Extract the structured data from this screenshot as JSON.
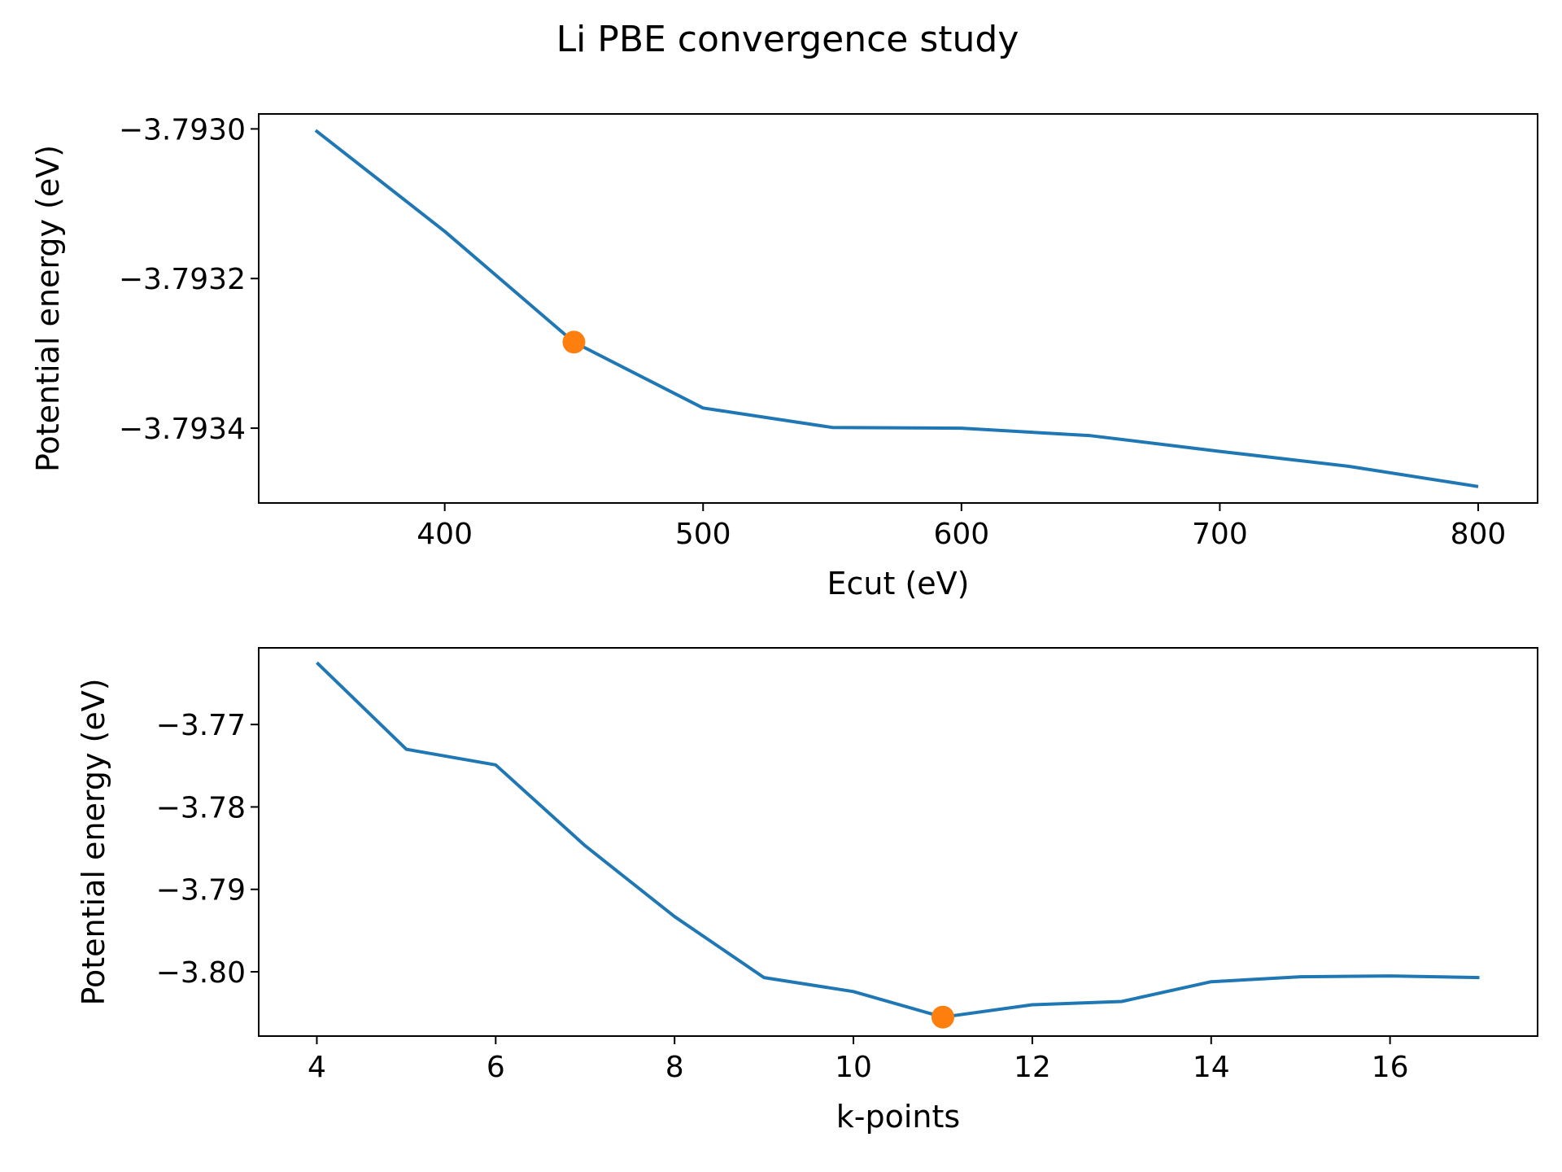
{
  "figure": {
    "title": "Li PBE convergence study"
  },
  "chart_data": [
    {
      "type": "line",
      "xlabel": "Ecut (eV)",
      "ylabel": "Potential energy (eV)",
      "xlim": [
        328,
        823
      ],
      "ylim": [
        -3.7935,
        -3.79298
      ],
      "xticks": [
        400,
        500,
        600,
        700,
        800
      ],
      "yticks": [
        -3.793,
        -3.7932,
        -3.7934
      ],
      "ytick_labels": [
        "−3.7930",
        "−3.7932",
        "−3.7934"
      ],
      "grid": false,
      "series": [
        {
          "values_x": [
            350,
            400,
            450,
            500,
            550,
            600,
            650,
            700,
            750,
            800
          ],
          "values_y": [
            -3.793002,
            -3.793137,
            -3.793285,
            -3.793373,
            -3.793399,
            -3.7934,
            -3.79341,
            -3.793431,
            -3.793451,
            -3.793478
          ],
          "color": "#1f77b4"
        }
      ],
      "highlight": {
        "x": 450,
        "y": -3.793285,
        "color": "#ff7f0e"
      }
    },
    {
      "type": "line",
      "xlabel": "k-points",
      "ylabel": "Potential energy (eV)",
      "xlim": [
        3.35,
        17.65
      ],
      "ylim": [
        -3.8078,
        -3.7607
      ],
      "xticks": [
        4,
        6,
        8,
        10,
        12,
        14,
        16
      ],
      "yticks": [
        -3.77,
        -3.78,
        -3.79,
        -3.8
      ],
      "ytick_labels": [
        "−3.77",
        "−3.78",
        "−3.79",
        "−3.80"
      ],
      "grid": false,
      "series": [
        {
          "values_x": [
            4,
            5,
            6,
            7,
            8,
            9,
            10,
            11,
            12,
            13,
            14,
            15,
            16,
            17
          ],
          "values_y": [
            -3.7625,
            -3.773,
            -3.7749,
            -3.7847,
            -3.7933,
            -3.8007,
            -3.8024,
            -3.8055,
            -3.804,
            -3.8036,
            -3.8012,
            -3.8006,
            -3.8005,
            -3.8007
          ],
          "color": "#1f77b4"
        }
      ],
      "highlight": {
        "x": 11,
        "y": -3.8055,
        "color": "#ff7f0e"
      }
    }
  ]
}
